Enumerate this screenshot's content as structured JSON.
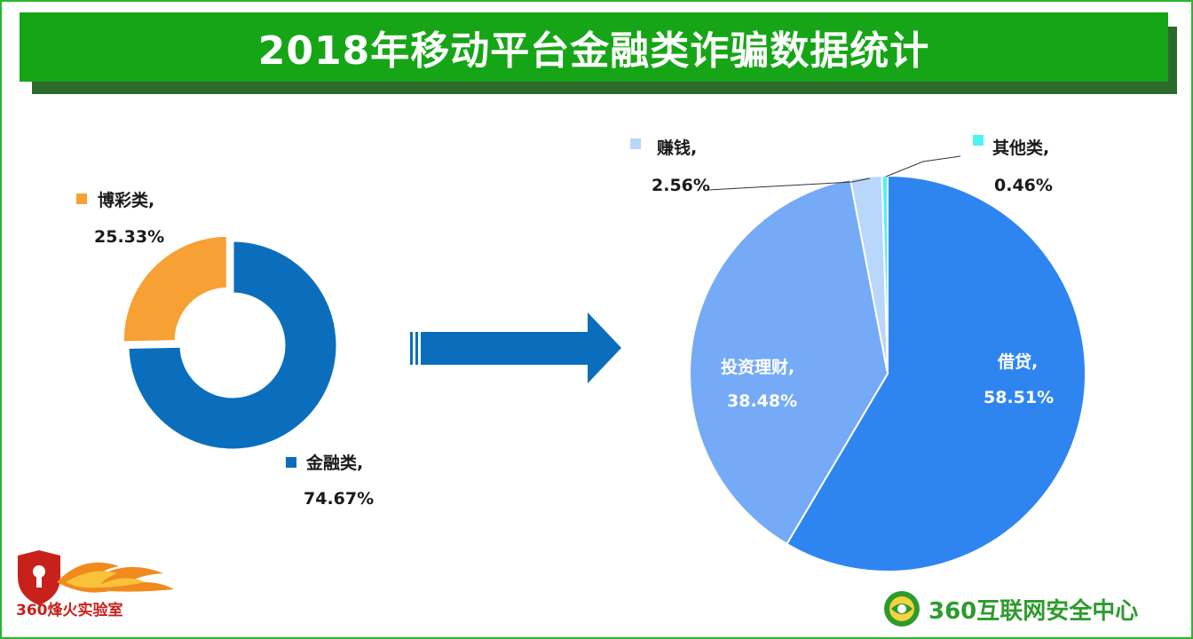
{
  "title": "2018年移动平台金融类诈骗数据统计",
  "chart_data": [
    {
      "type": "donut",
      "title": "",
      "legend_position": "labels-beside",
      "slices": [
        {
          "label": "金融类,",
          "percent_text": "74.67%",
          "value": 74.67,
          "color": "#0a6ebd"
        },
        {
          "label": "博彩类,",
          "percent_text": "25.33%",
          "value": 25.33,
          "color": "#f7a033"
        }
      ]
    },
    {
      "type": "pie",
      "title": "",
      "legend_position": "labels-beside",
      "slices": [
        {
          "label": "借贷,",
          "percent_text": "58.51%",
          "value": 58.51,
          "color": "#2f85f0"
        },
        {
          "label": "投资理财,",
          "percent_text": "38.48%",
          "value": 38.48,
          "color": "#75aaf6"
        },
        {
          "label": "赚钱,",
          "percent_text": "2.56%",
          "value": 2.56,
          "color": "#b9d6fb"
        },
        {
          "label": "其他类,",
          "percent_text": "0.46%",
          "value": 0.46,
          "color": "#4ff3f6"
        }
      ]
    }
  ],
  "arrow_color": "#0a6ebd",
  "logos": {
    "left_text": "360烽火实验室",
    "right_text": "360互联网安全中心"
  }
}
